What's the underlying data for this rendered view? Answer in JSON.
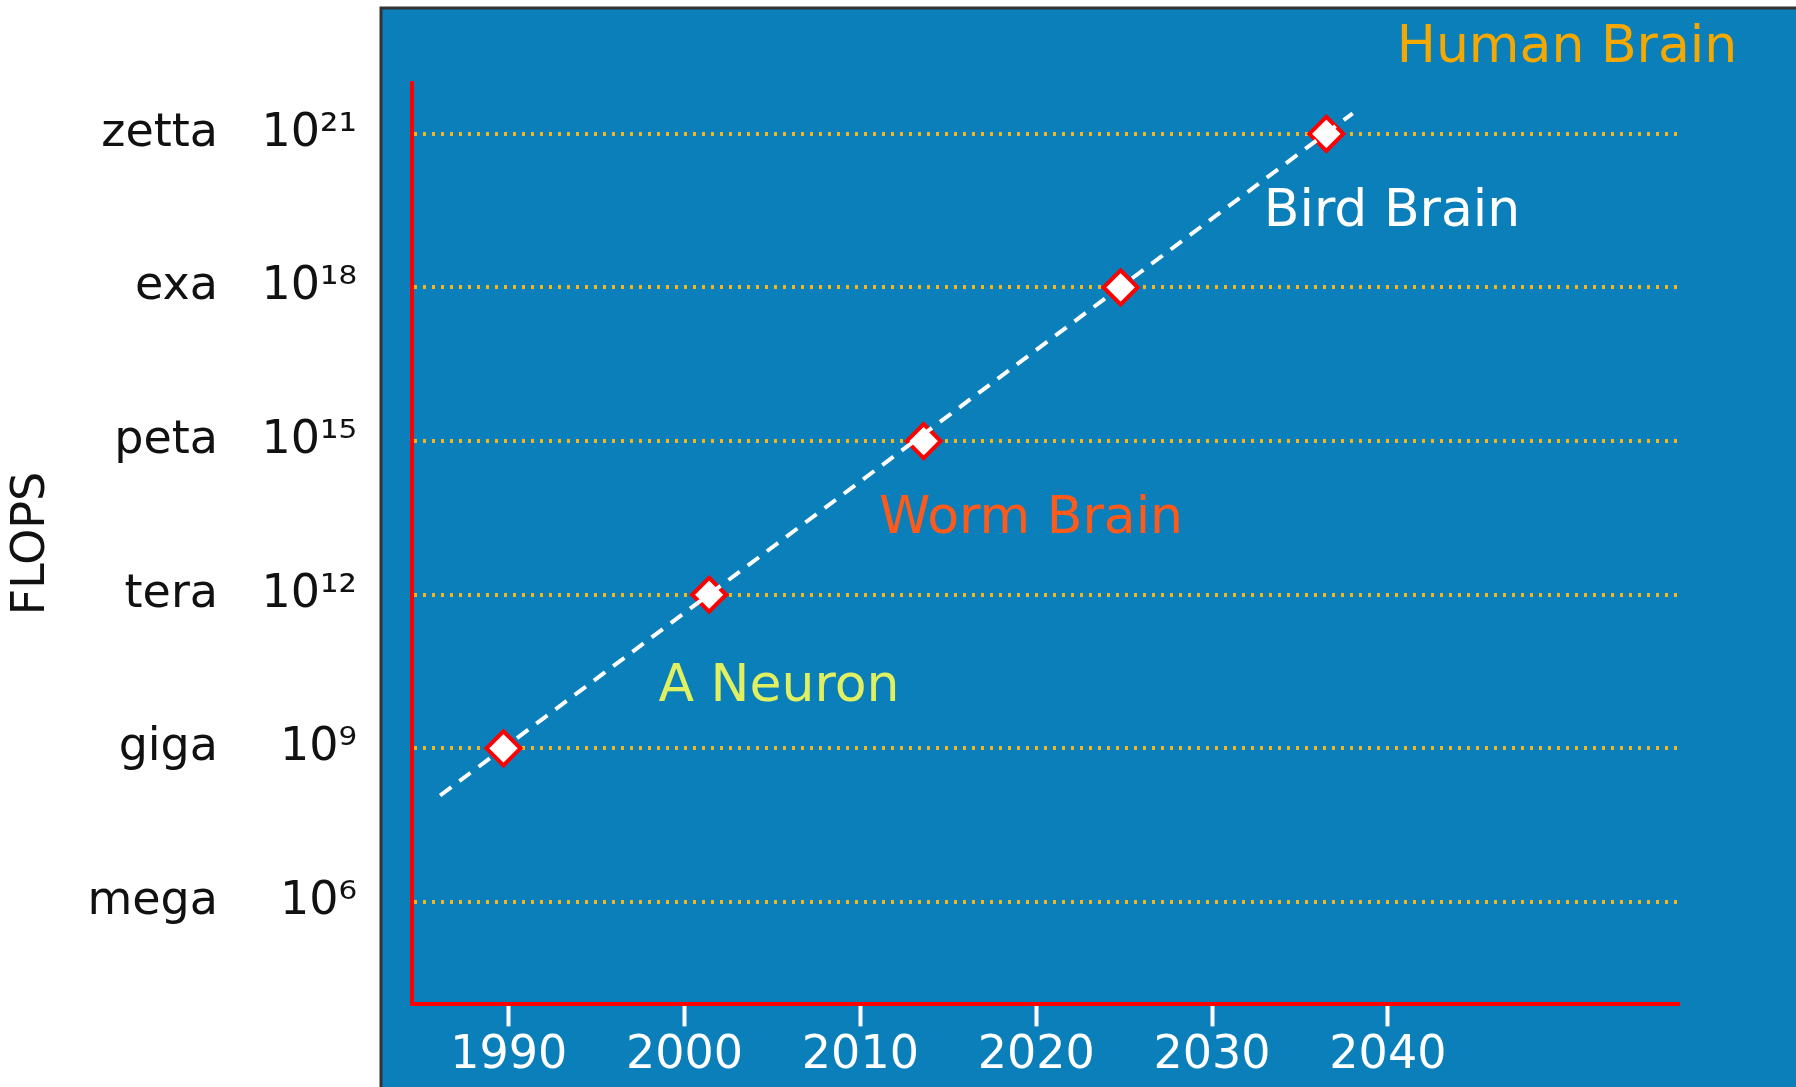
{
  "chart_data": {
    "type": "scatter",
    "ylabel": "FLOPS",
    "log": "y",
    "grid": "y",
    "legend": false,
    "marker": "diamond",
    "xlim": [
      1984.5,
      2056.5
    ],
    "xticks": [
      1990,
      2000,
      2010,
      2020,
      2030,
      2040
    ],
    "ylim": [
      10000.0,
      1e+22
    ],
    "yticks": [
      {
        "value": 1000000.0,
        "label": "10⁶"
      },
      {
        "value": 1000000000.0,
        "label": "10⁹"
      },
      {
        "value": 1000000000000.0,
        "label": "10¹²"
      },
      {
        "value": 1000000000000000.0,
        "label": "10¹⁵"
      },
      {
        "value": 1e+18,
        "label": "10¹⁸"
      },
      {
        "value": 1e+21,
        "label": "10²¹"
      }
    ],
    "series": [
      {
        "type": "line",
        "color": "#ffffff",
        "line_style": "dashed",
        "marker": "none",
        "x": [
          1986.1,
          2038
        ],
        "values": [
          120000000.0,
          2.5e+21
        ]
      },
      {
        "color": "#ff0000",
        "x": [
          1989.7,
          2001.4,
          2013.6,
          2024.8,
          2036.5
        ],
        "values": [
          1000000000.0,
          1000000000000.0,
          1000000000000000.0,
          1e+18,
          1e+21
        ]
      }
    ],
    "annotations": [
      "Human Brain",
      "Bird Brain",
      "Worm Brain",
      "A Neuron",
      "mega",
      "giga",
      "tera",
      "peta",
      "exa",
      "zetta"
    ]
  }
}
